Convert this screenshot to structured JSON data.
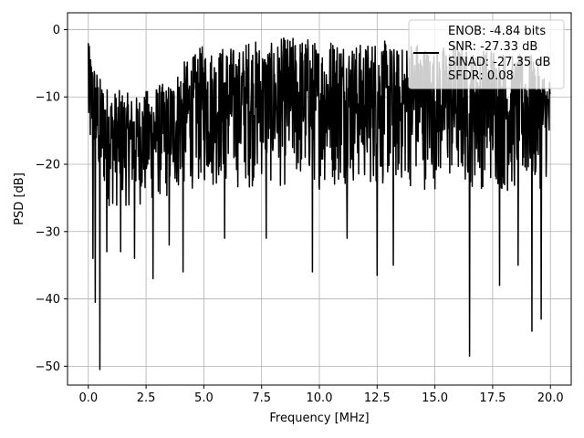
{
  "chart_data": {
    "type": "line",
    "title": "",
    "xlabel": "Frequency [MHz]",
    "ylabel": "PSD [dB]",
    "xlim": [
      -0.9,
      20.9
    ],
    "ylim": [
      -52.8,
      2.5
    ],
    "x_ticks": [
      0.0,
      2.5,
      5.0,
      7.5,
      10.0,
      12.5,
      15.0,
      17.5,
      20.0
    ],
    "x_tick_labels": [
      "0.0",
      "2.5",
      "5.0",
      "7.5",
      "10.0",
      "12.5",
      "15.0",
      "17.5",
      "20.0"
    ],
    "y_ticks": [
      0,
      -10,
      -20,
      -30,
      -40,
      -50
    ],
    "y_tick_labels": [
      "0",
      "−10",
      "−20",
      "−30",
      "−40",
      "−50"
    ],
    "grid": true,
    "legend_position": "top-right",
    "legend": {
      "line_color": "#000000",
      "entries": [
        "ENOB: -4.84 bits",
        "SNR: -27.33 dB",
        "SINAD: -27.35 dB",
        "SFDR: 0.08"
      ]
    },
    "series": [
      {
        "color": "#000000",
        "x_range": [
          0.0,
          20.0
        ],
        "upper_envelope": [
          [
            0.0,
            -2
          ],
          [
            0.5,
            -7
          ],
          [
            1.0,
            -9
          ],
          [
            1.5,
            -9
          ],
          [
            2.0,
            -10
          ],
          [
            2.5,
            -9
          ],
          [
            3.0,
            -8
          ],
          [
            3.5,
            -8
          ],
          [
            4.0,
            -5
          ],
          [
            4.5,
            -4
          ],
          [
            5.0,
            -2
          ],
          [
            5.5,
            -3
          ],
          [
            6.0,
            -2
          ],
          [
            6.5,
            -3
          ],
          [
            7.0,
            -1
          ],
          [
            7.5,
            -2
          ],
          [
            8.0,
            -2
          ],
          [
            8.5,
            -1
          ],
          [
            9.0,
            -1
          ],
          [
            9.5,
            -1
          ],
          [
            10.0,
            -2
          ],
          [
            10.5,
            -1
          ],
          [
            11.0,
            -1
          ],
          [
            11.5,
            -2
          ],
          [
            12.0,
            -2
          ],
          [
            12.5,
            -1
          ],
          [
            13.0,
            -2
          ],
          [
            13.5,
            -3
          ],
          [
            14.0,
            -1
          ],
          [
            14.5,
            -2
          ],
          [
            15.0,
            -3
          ],
          [
            15.5,
            -2
          ],
          [
            16.0,
            -2
          ],
          [
            16.5,
            -3
          ],
          [
            17.0,
            -3
          ],
          [
            17.5,
            -2
          ],
          [
            18.0,
            -3
          ],
          [
            18.5,
            -4
          ],
          [
            19.0,
            -3
          ],
          [
            19.5,
            -5
          ],
          [
            20.0,
            -7
          ]
        ],
        "lower_envelope": [
          [
            0.0,
            -20
          ],
          [
            0.5,
            -25
          ],
          [
            1.0,
            -27
          ],
          [
            1.5,
            -27
          ],
          [
            2.0,
            -26
          ],
          [
            2.5,
            -27
          ],
          [
            3.0,
            -26
          ],
          [
            3.5,
            -26
          ],
          [
            4.0,
            -25
          ],
          [
            4.5,
            -24
          ],
          [
            5.0,
            -24
          ],
          [
            5.5,
            -24
          ],
          [
            6.0,
            -24
          ],
          [
            6.5,
            -24
          ],
          [
            7.0,
            -24
          ],
          [
            7.5,
            -23
          ],
          [
            8.0,
            -24
          ],
          [
            8.5,
            -24
          ],
          [
            9.0,
            -24
          ],
          [
            9.5,
            -24
          ],
          [
            10.0,
            -24
          ],
          [
            10.5,
            -24
          ],
          [
            11.0,
            -24
          ],
          [
            11.5,
            -24
          ],
          [
            12.0,
            -24
          ],
          [
            12.5,
            -24
          ],
          [
            13.0,
            -24
          ],
          [
            13.5,
            -24
          ],
          [
            14.0,
            -24
          ],
          [
            14.5,
            -24
          ],
          [
            15.0,
            -24
          ],
          [
            15.5,
            -24
          ],
          [
            16.0,
            -24
          ],
          [
            16.5,
            -24
          ],
          [
            17.0,
            -24
          ],
          [
            17.5,
            -24
          ],
          [
            18.0,
            -25
          ],
          [
            18.5,
            -25
          ],
          [
            19.0,
            -25
          ],
          [
            19.5,
            -24
          ],
          [
            20.0,
            -22
          ]
        ],
        "notable_minima": [
          [
            0.2,
            -34
          ],
          [
            0.3,
            -40.5
          ],
          [
            0.5,
            -50.5
          ],
          [
            0.8,
            -33
          ],
          [
            1.4,
            -33
          ],
          [
            2.0,
            -34
          ],
          [
            2.8,
            -37
          ],
          [
            3.5,
            -32
          ],
          [
            4.1,
            -36
          ],
          [
            5.9,
            -31
          ],
          [
            7.7,
            -31
          ],
          [
            9.7,
            -36
          ],
          [
            11.2,
            -31
          ],
          [
            12.5,
            -36.5
          ],
          [
            13.2,
            -35
          ],
          [
            16.5,
            -48.5
          ],
          [
            17.8,
            -38
          ],
          [
            18.6,
            -35
          ],
          [
            19.2,
            -44.8
          ],
          [
            19.6,
            -43
          ]
        ]
      }
    ]
  }
}
